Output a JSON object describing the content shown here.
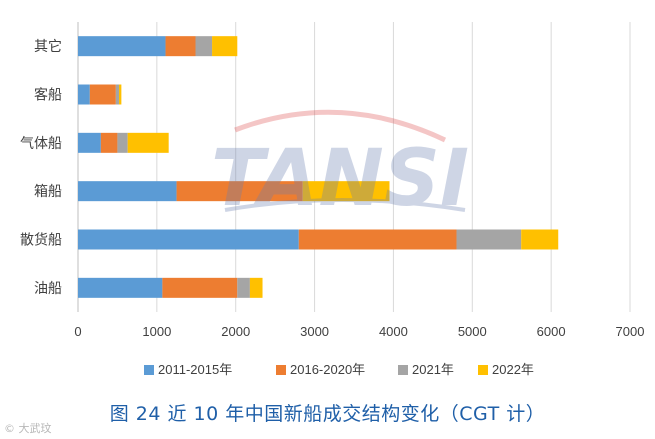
{
  "chart_data": {
    "type": "bar",
    "orientation": "horizontal",
    "stacked": true,
    "categories": [
      "其它",
      "客船",
      "气体船",
      "箱船",
      "散货船",
      "油船"
    ],
    "series": [
      {
        "name": "2011-2015年",
        "color": "#5b9bd5",
        "values": [
          1110,
          150,
          290,
          1250,
          2800,
          1070
        ]
      },
      {
        "name": "2016-2020年",
        "color": "#ed7d31",
        "values": [
          380,
          330,
          210,
          1600,
          2000,
          950
        ]
      },
      {
        "name": "2021年",
        "color": "#a5a5a5",
        "values": [
          210,
          40,
          130,
          0,
          820,
          160
        ]
      },
      {
        "name": "2022年",
        "color": "#ffc000",
        "values": [
          320,
          30,
          520,
          1100,
          470,
          160
        ]
      }
    ],
    "xlim": [
      0,
      7000
    ],
    "xticks": [
      "0",
      "1000",
      "2000",
      "3000",
      "4000",
      "5000",
      "6000",
      "7000"
    ],
    "grid": "vertical",
    "legend_position": "bottom",
    "title": "图 24    近 10 年中国新船成交结构变化（CGT 计）"
  },
  "watermark": {
    "text": "TANSI",
    "corner_text": "大武玟"
  }
}
